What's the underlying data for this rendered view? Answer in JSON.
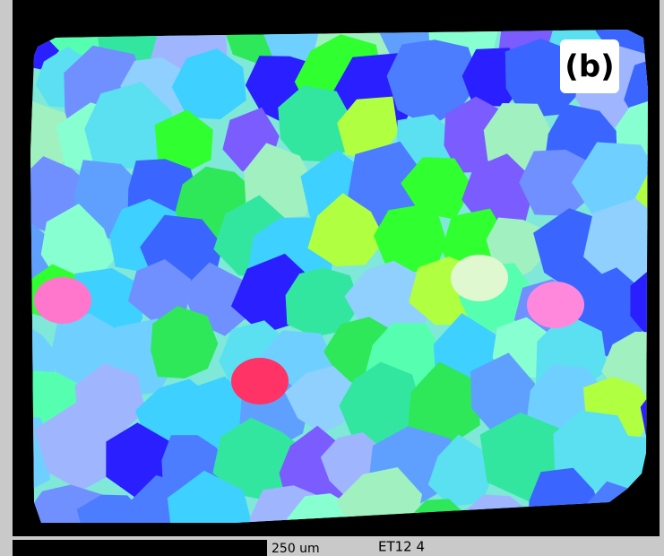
{
  "label": "(b)",
  "scale_bar": {
    "label": "250 um"
  },
  "sample_id": "ET12 4"
}
